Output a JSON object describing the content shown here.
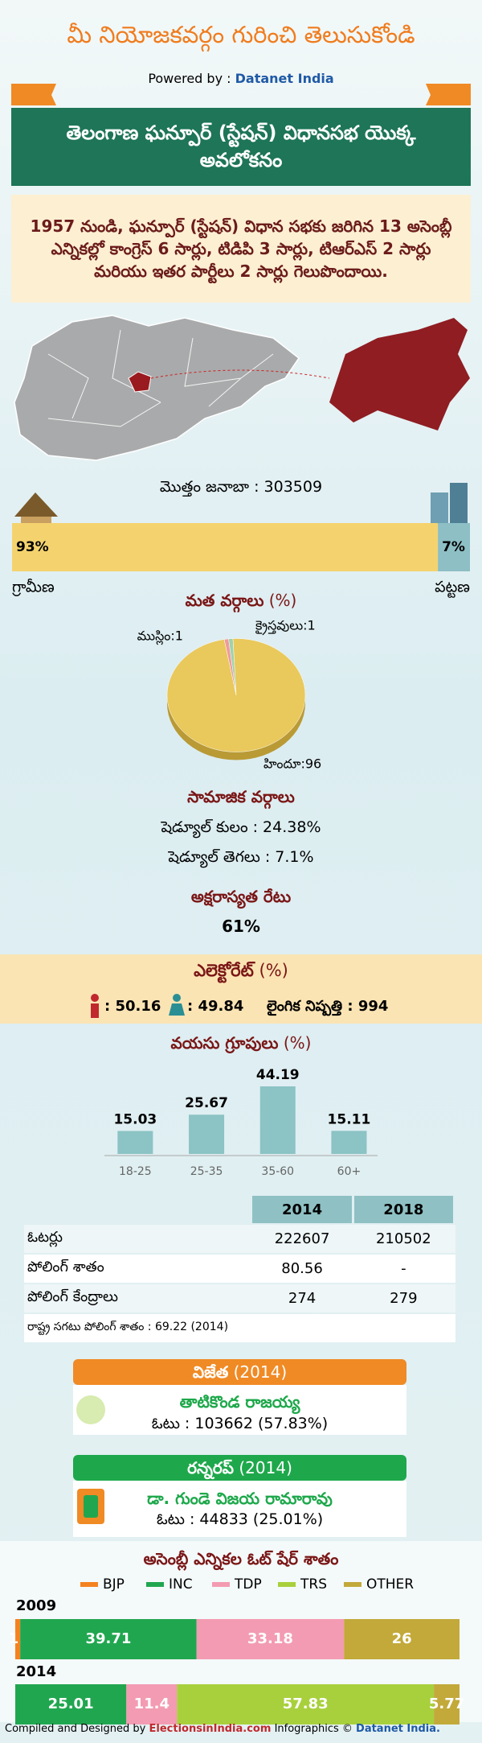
{
  "header": {
    "title": "మీ నియోజకవర్గం గురించి తెలుసుకోండి",
    "powered_by": "Powered by :",
    "brand": "Datanet India"
  },
  "banner": {
    "title": "తెలంగాణ ఘన్పూర్ (స్టేషన్) విధానసభ యొక్క అవలోకనం"
  },
  "summary": "1957 నుండి, ఘన్పూర్ (స్టేషన్) విధాన సభకు జరిగిన 13 అసెంబ్లీ ఎన్నికల్లో కాంగ్రెస్ 6 సార్లు, టిడిపి 3 సార్లు, టిఆర్ఎస్ 2 సార్లు మరియు ఇతర పార్టీలు 2 సార్లు గెలుపొందాయి.",
  "population": {
    "total": "మొత్తం జనాబా : 303509"
  },
  "religion": {
    "title": "మత వర్గాలు",
    "unit": "(%)"
  },
  "social": {
    "title": "సామాజిక వర్గాలు",
    "sc": "షెడ్యూల్ కులం :  24.38%",
    "st": "షెడ్యూల్ తెగలు :  7.1%"
  },
  "literacy": {
    "title": "అక్షరాస్యత రేటు",
    "value": "61%"
  },
  "electorate": {
    "title": "ఎలెక్టోరేట్",
    "unit": "(%)",
    "male": ": 50.16",
    "female": ": 49.84",
    "sex_ratio": "లైంగిక నిష్పత్తి : 994"
  },
  "age": {
    "title": "వయసు గ్రూపులు",
    "unit": "(%)"
  },
  "table": {
    "columns": [
      "2014",
      "2018"
    ],
    "rows": [
      [
        "ఓటర్లు",
        "222607",
        "210502"
      ],
      [
        "పోలింగ్ శాతం",
        "80.56",
        "-"
      ],
      [
        "పోలింగ్ కేంద్రాలు",
        "274",
        "279"
      ]
    ],
    "note": "రాష్ట్ర సగటు పోలింగ్ శాతం : 69.22 (2014)"
  },
  "winner": {
    "title": "విజేత",
    "year": "(2014)",
    "name": "తాటికొండ రాజయ్య",
    "votes": "ఓటు : 103662 (57.83%)"
  },
  "runner_up": {
    "title": "రన్నరప్",
    "year": "(2014)",
    "name": "డా. గుండె విజయ రామారావు",
    "votes": "ఓటు : 44833 (25.01%)"
  },
  "footer": {
    "compiled": "Compiled and Designed by",
    "site": "ElectionsinIndia.com",
    "infographics": "Infographics ©",
    "brand": "Datanet India."
  },
  "chart_data": [
    {
      "type": "split",
      "categories": [
        "గ్రామీణ",
        "పట్టణ"
      ],
      "values": [
        93,
        7
      ],
      "value_labels": [
        "93%",
        "7%"
      ],
      "colors": [
        "#f4d36e",
        "#8dbfc5"
      ]
    },
    {
      "type": "pie",
      "categories": [
        "ముస్లిం:1",
        "క్రైస్తవులు:1",
        "హిందూ:96"
      ],
      "values": [
        1,
        1,
        96
      ],
      "colors": [
        "#f19a9a",
        "#9fd3aa",
        "#e9c85c"
      ]
    },
    {
      "type": "bar",
      "categories": [
        "18-25",
        "25-35",
        "35-60",
        "60+"
      ],
      "values": [
        15.03,
        25.67,
        44.19,
        15.11
      ],
      "color": "#8cc3c5"
    },
    {
      "type": "stacked",
      "title": "అసెంబ్లీ ఎన్నికల ఓట్ షేర్ శాతం",
      "categories": [
        "2009",
        "2014"
      ],
      "series": [
        {
          "name": "BJP",
          "color": "#f58220",
          "values": [
            1.11,
            null
          ]
        },
        {
          "name": "INC",
          "color": "#21a650",
          "values": [
            39.71,
            25.01
          ]
        },
        {
          "name": "TDP",
          "color": "#f39bb2",
          "values": [
            33.18,
            11.4
          ]
        },
        {
          "name": "TRS",
          "color": "#a8d03c",
          "values": [
            null,
            57.83
          ]
        },
        {
          "name": "OTHER",
          "color": "#c2a93a",
          "values": [
            26,
            5.77
          ]
        }
      ]
    }
  ]
}
